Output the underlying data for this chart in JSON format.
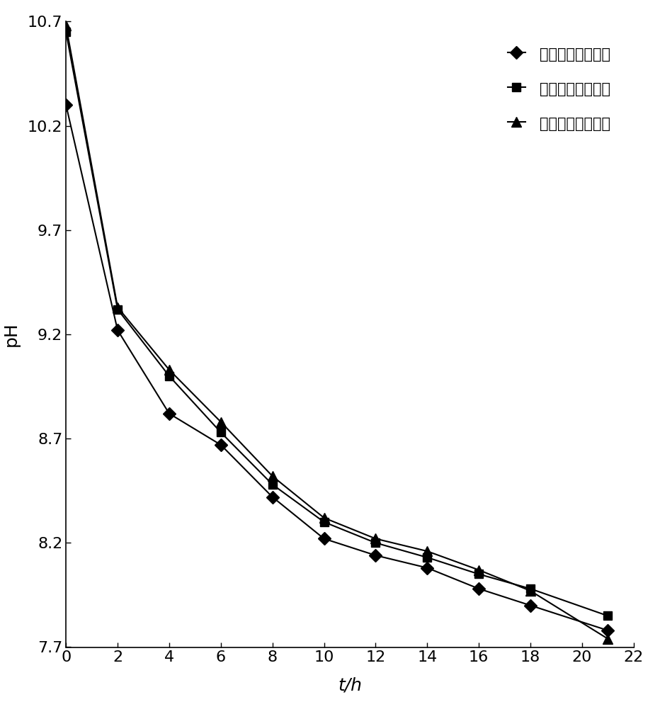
{
  "x": [
    0,
    2,
    4,
    6,
    8,
    10,
    12,
    14,
    16,
    18,
    21
  ],
  "series1_y": [
    10.3,
    9.22,
    8.82,
    8.67,
    8.42,
    8.22,
    8.14,
    8.08,
    7.98,
    7.9,
    7.78
  ],
  "series2_y": [
    10.65,
    9.32,
    9.0,
    8.73,
    8.48,
    8.3,
    8.2,
    8.13,
    8.05,
    7.98,
    7.85
  ],
  "series3_y": [
    10.68,
    9.33,
    9.03,
    8.78,
    8.52,
    8.32,
    8.22,
    8.16,
    8.07,
    7.97,
    7.74
  ],
  "series1_label": "加乳化剂并均质；",
  "series2_label": "加乳化剂不均质；",
  "series3_label": "不加乳化剂不均质",
  "xlabel": "t/h",
  "ylabel": "pH",
  "xlim": [
    0,
    22
  ],
  "ylim": [
    7.7,
    10.7
  ],
  "yticks": [
    7.7,
    8.2,
    8.7,
    9.2,
    9.7,
    10.2,
    10.7
  ],
  "xticks": [
    0,
    2,
    4,
    6,
    8,
    10,
    12,
    14,
    16,
    18,
    20,
    22
  ],
  "line_color": "#000000",
  "background_color": "#ffffff",
  "tick_fontsize": 16,
  "label_fontsize": 18,
  "legend_fontsize": 15
}
